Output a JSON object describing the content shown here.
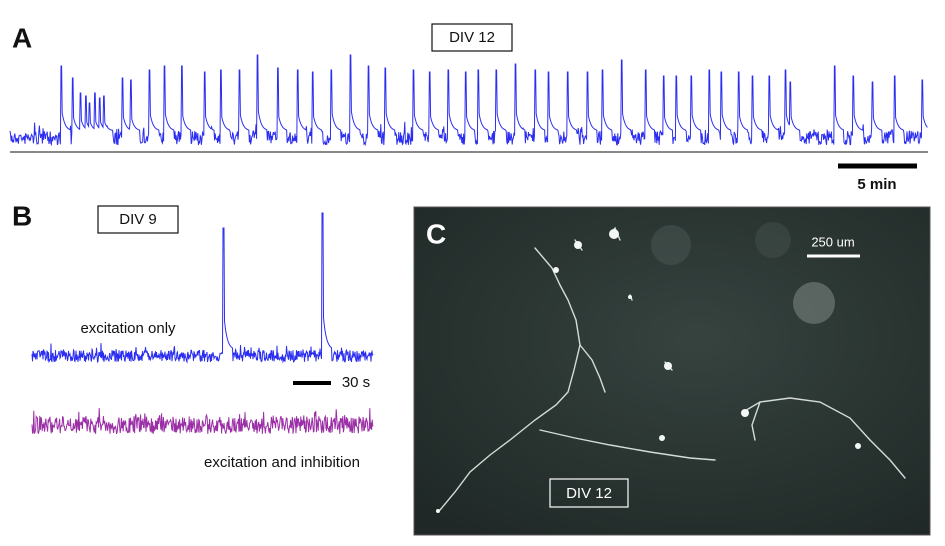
{
  "panels": [
    {
      "label": "A",
      "tag": "DIV 12",
      "scale_bar": "5 min"
    },
    {
      "label": "B",
      "tag": "DIV 9",
      "scale_bar": "30 s",
      "traces": [
        "excitation only",
        "excitation and inhibition"
      ]
    },
    {
      "label": "C",
      "tag": "DIV 12",
      "scale_bar": "250 um"
    }
  ]
}
